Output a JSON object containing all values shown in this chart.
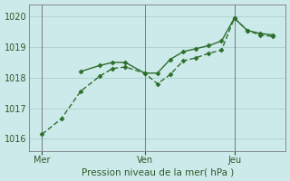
{
  "xlabel": "Pression niveau de la mer( hPa )",
  "bg_color": "#cdeaea",
  "grid_color": "#b0d4d4",
  "line_color": "#2d6e2d",
  "ylim": [
    1015.6,
    1020.4
  ],
  "yticks": [
    1016,
    1017,
    1018,
    1019,
    1020
  ],
  "xlim": [
    0,
    20
  ],
  "x_tick_positions": [
    1,
    9,
    16
  ],
  "x_tick_labels": [
    "Mer",
    "Ven",
    "Jeu"
  ],
  "x_vline_positions": [
    1,
    9,
    16
  ],
  "series1_x": [
    1,
    2.5,
    4,
    5.5,
    6.5,
    7.5,
    9,
    10,
    11,
    12,
    13,
    14,
    15,
    16,
    17,
    18,
    19
  ],
  "series1_y": [
    1016.15,
    1016.65,
    1017.55,
    1018.05,
    1018.3,
    1018.35,
    1018.15,
    1017.8,
    1018.1,
    1018.55,
    1018.65,
    1018.8,
    1018.9,
    1019.95,
    1019.55,
    1019.4,
    1019.35
  ],
  "series2_x": [
    4,
    5.5,
    6.5,
    7.5,
    9,
    10,
    11,
    12,
    13,
    14,
    15,
    16,
    17,
    18,
    19
  ],
  "series2_y": [
    1018.2,
    1018.4,
    1018.5,
    1018.5,
    1018.15,
    1018.15,
    1018.6,
    1018.85,
    1018.95,
    1019.05,
    1019.2,
    1019.95,
    1019.55,
    1019.45,
    1019.4
  ],
  "marker_size": 2.5,
  "line_width": 1.0
}
